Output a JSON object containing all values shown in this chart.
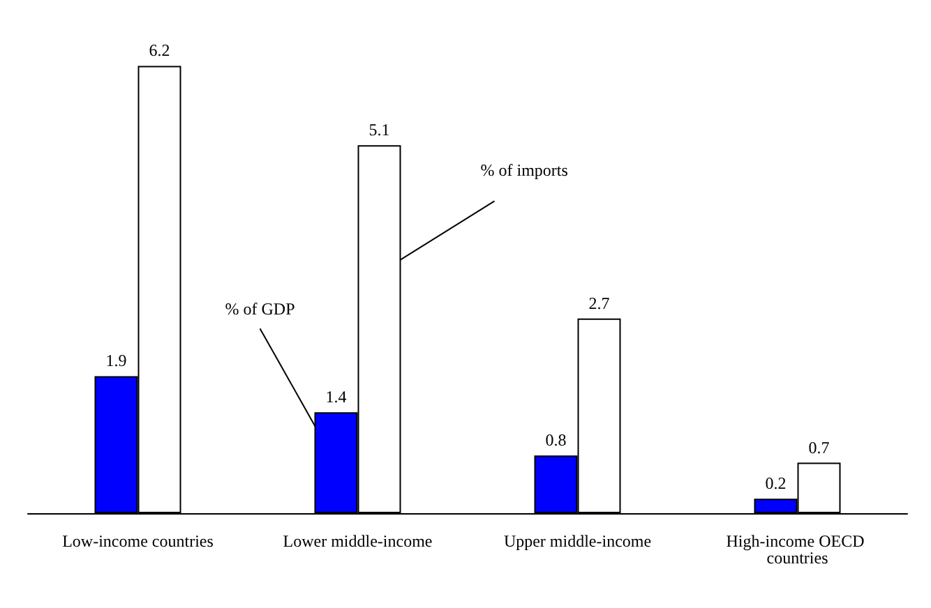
{
  "chart_data": {
    "type": "bar",
    "categories": [
      "Low-income countries",
      "Lower middle-income",
      "Upper middle-income",
      "High-income OECD countries"
    ],
    "series": [
      {
        "name": "% of GDP",
        "color": "#0000ff",
        "values": [
          1.9,
          1.4,
          0.8,
          0.2
        ]
      },
      {
        "name": "% of imports",
        "color": "#ffffff",
        "values": [
          6.2,
          5.1,
          2.7,
          0.7
        ]
      }
    ],
    "data_labels": true,
    "legend": false,
    "grid": false
  }
}
